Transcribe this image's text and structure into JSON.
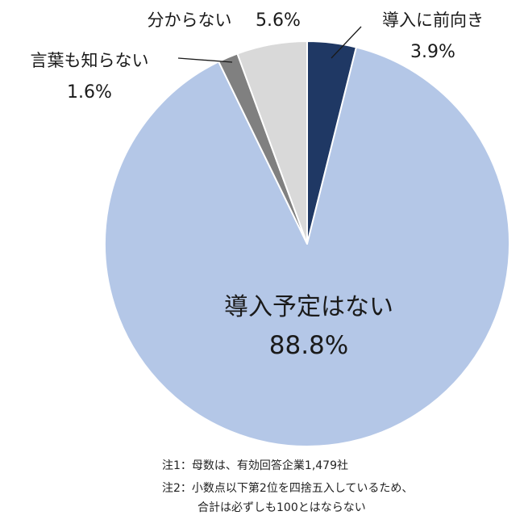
{
  "chart_data": {
    "type": "pie",
    "start_angle_deg": 0,
    "direction": "clockwise",
    "slices": [
      {
        "label": "導入に前向き",
        "value": 3.9,
        "display": "3.9%",
        "color": "#1f3864"
      },
      {
        "label": "導入予定はない",
        "value": 88.8,
        "display": "88.8%",
        "color": "#b4c7e7"
      },
      {
        "label": "言葉も知らない",
        "value": 1.6,
        "display": "1.6%",
        "color": "#808080"
      },
      {
        "label": "分からない",
        "value": 5.6,
        "display": "5.6%",
        "color": "#d9d9d9"
      }
    ]
  },
  "notes": {
    "note1": "注1：母数は、有効回答企業1,479社",
    "note2": "注2：小数点以下第2位を四捨五入しているため、",
    "note3": "合計は必ずしも100とはならない"
  }
}
